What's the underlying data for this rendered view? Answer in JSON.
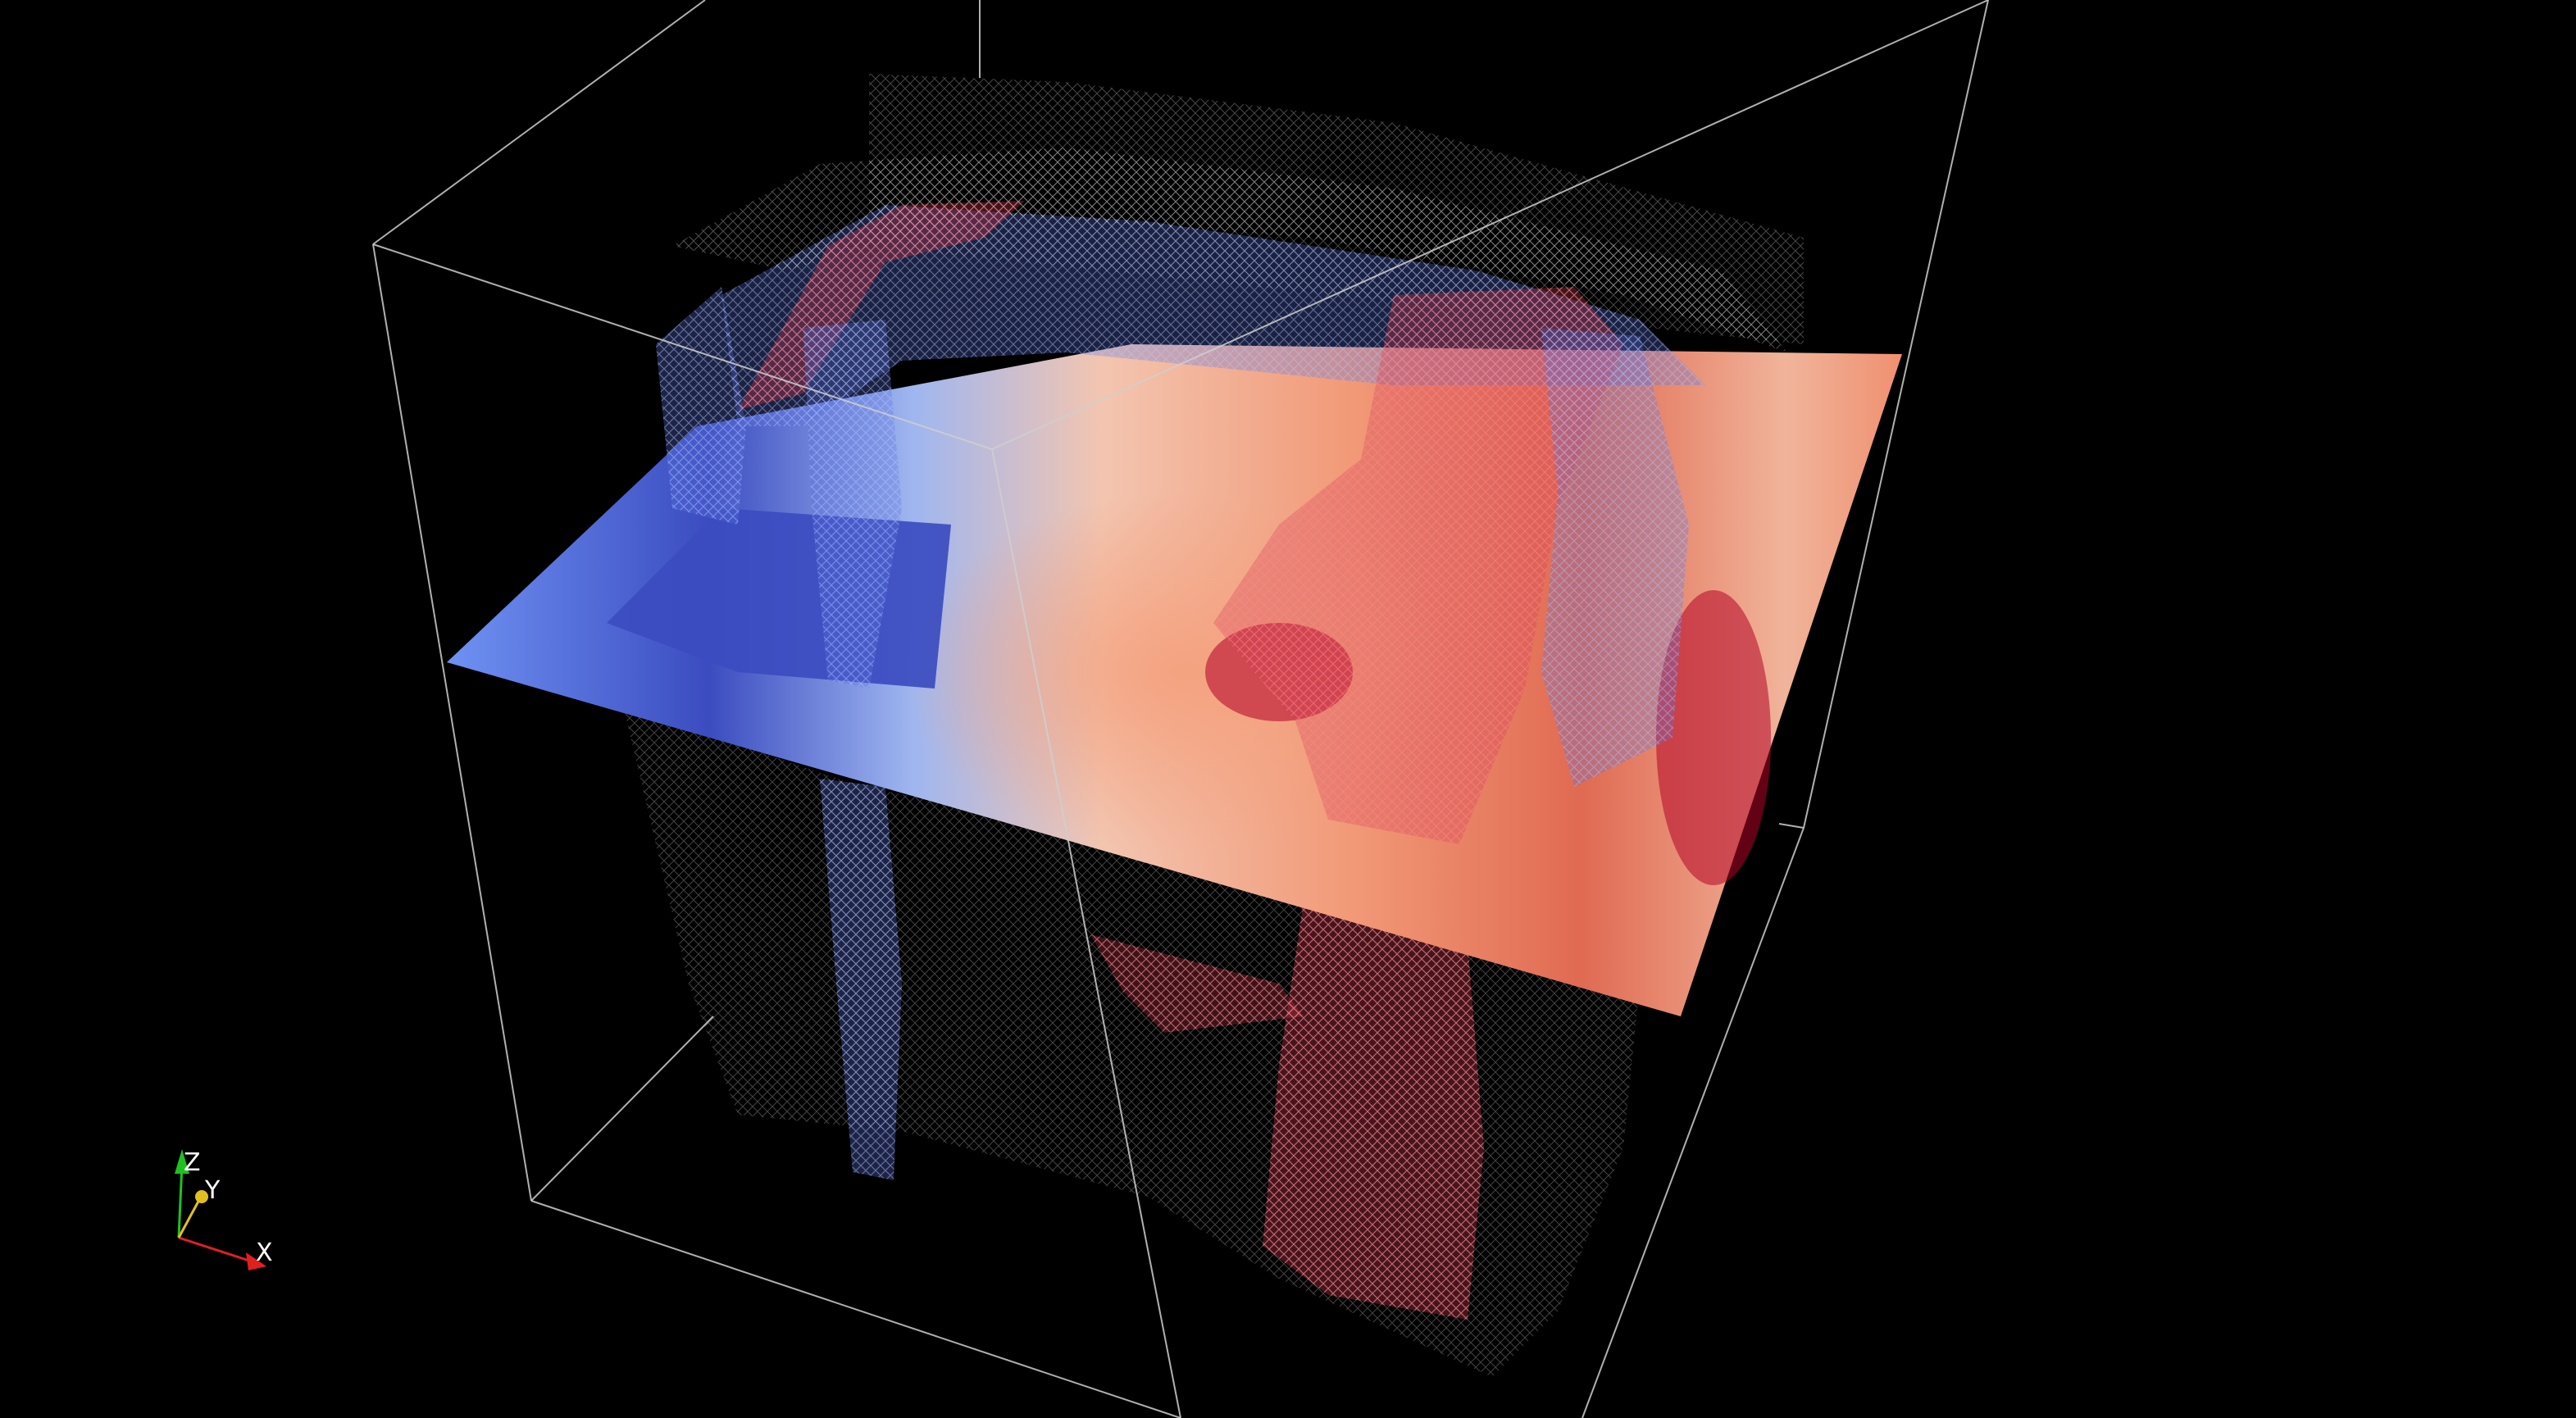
{
  "viewer": {
    "background_color": "#000000",
    "outline_color": "#cfcfcf"
  },
  "volume": {
    "colormap": [
      "#3b4cc0",
      "#6f92f3",
      "#dddcdc",
      "#f08a6c",
      "#b40426"
    ]
  },
  "orientation_axes": {
    "x_label": "X",
    "y_label": "Y",
    "z_label": "Z",
    "x_color": "#e02020",
    "y_color": "#e0c020",
    "z_color": "#20c020"
  }
}
